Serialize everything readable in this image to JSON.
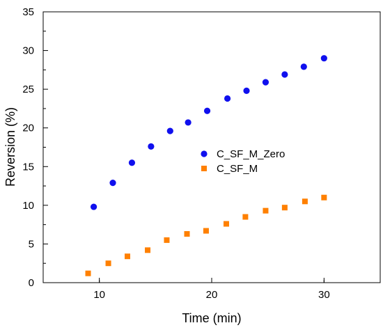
{
  "chart_data": {
    "type": "scatter",
    "title": "",
    "xlabel": "Time (min)",
    "ylabel": "Reversion (%)",
    "xlim": [
      5,
      35
    ],
    "ylim": [
      0,
      35
    ],
    "xticks": [
      "10",
      "20",
      "30"
    ],
    "yticks": [
      "0",
      "5",
      "10",
      "15",
      "20",
      "25",
      "30",
      "35"
    ],
    "grid": false,
    "legend_position": "right-center",
    "series": [
      {
        "name": "C_SF_M_Zero",
        "marker": "circle",
        "color": "#1010EE",
        "x": [
          9.5,
          11.2,
          12.9,
          14.6,
          16.3,
          17.9,
          19.6,
          21.4,
          23.1,
          24.8,
          26.5,
          28.2,
          30.0
        ],
        "y": [
          9.8,
          12.9,
          15.5,
          17.6,
          19.6,
          20.7,
          22.2,
          23.8,
          24.8,
          25.9,
          26.9,
          27.9,
          29.0
        ]
      },
      {
        "name": "C_SF_M",
        "marker": "square",
        "color": "#FF8000",
        "x": [
          9.0,
          10.8,
          12.5,
          14.3,
          16.0,
          17.8,
          19.5,
          21.3,
          23.0,
          24.8,
          26.5,
          28.3,
          30.0
        ],
        "y": [
          1.2,
          2.5,
          3.4,
          4.2,
          5.5,
          6.3,
          6.7,
          7.6,
          8.5,
          9.3,
          9.7,
          10.5,
          11.0
        ]
      }
    ]
  }
}
